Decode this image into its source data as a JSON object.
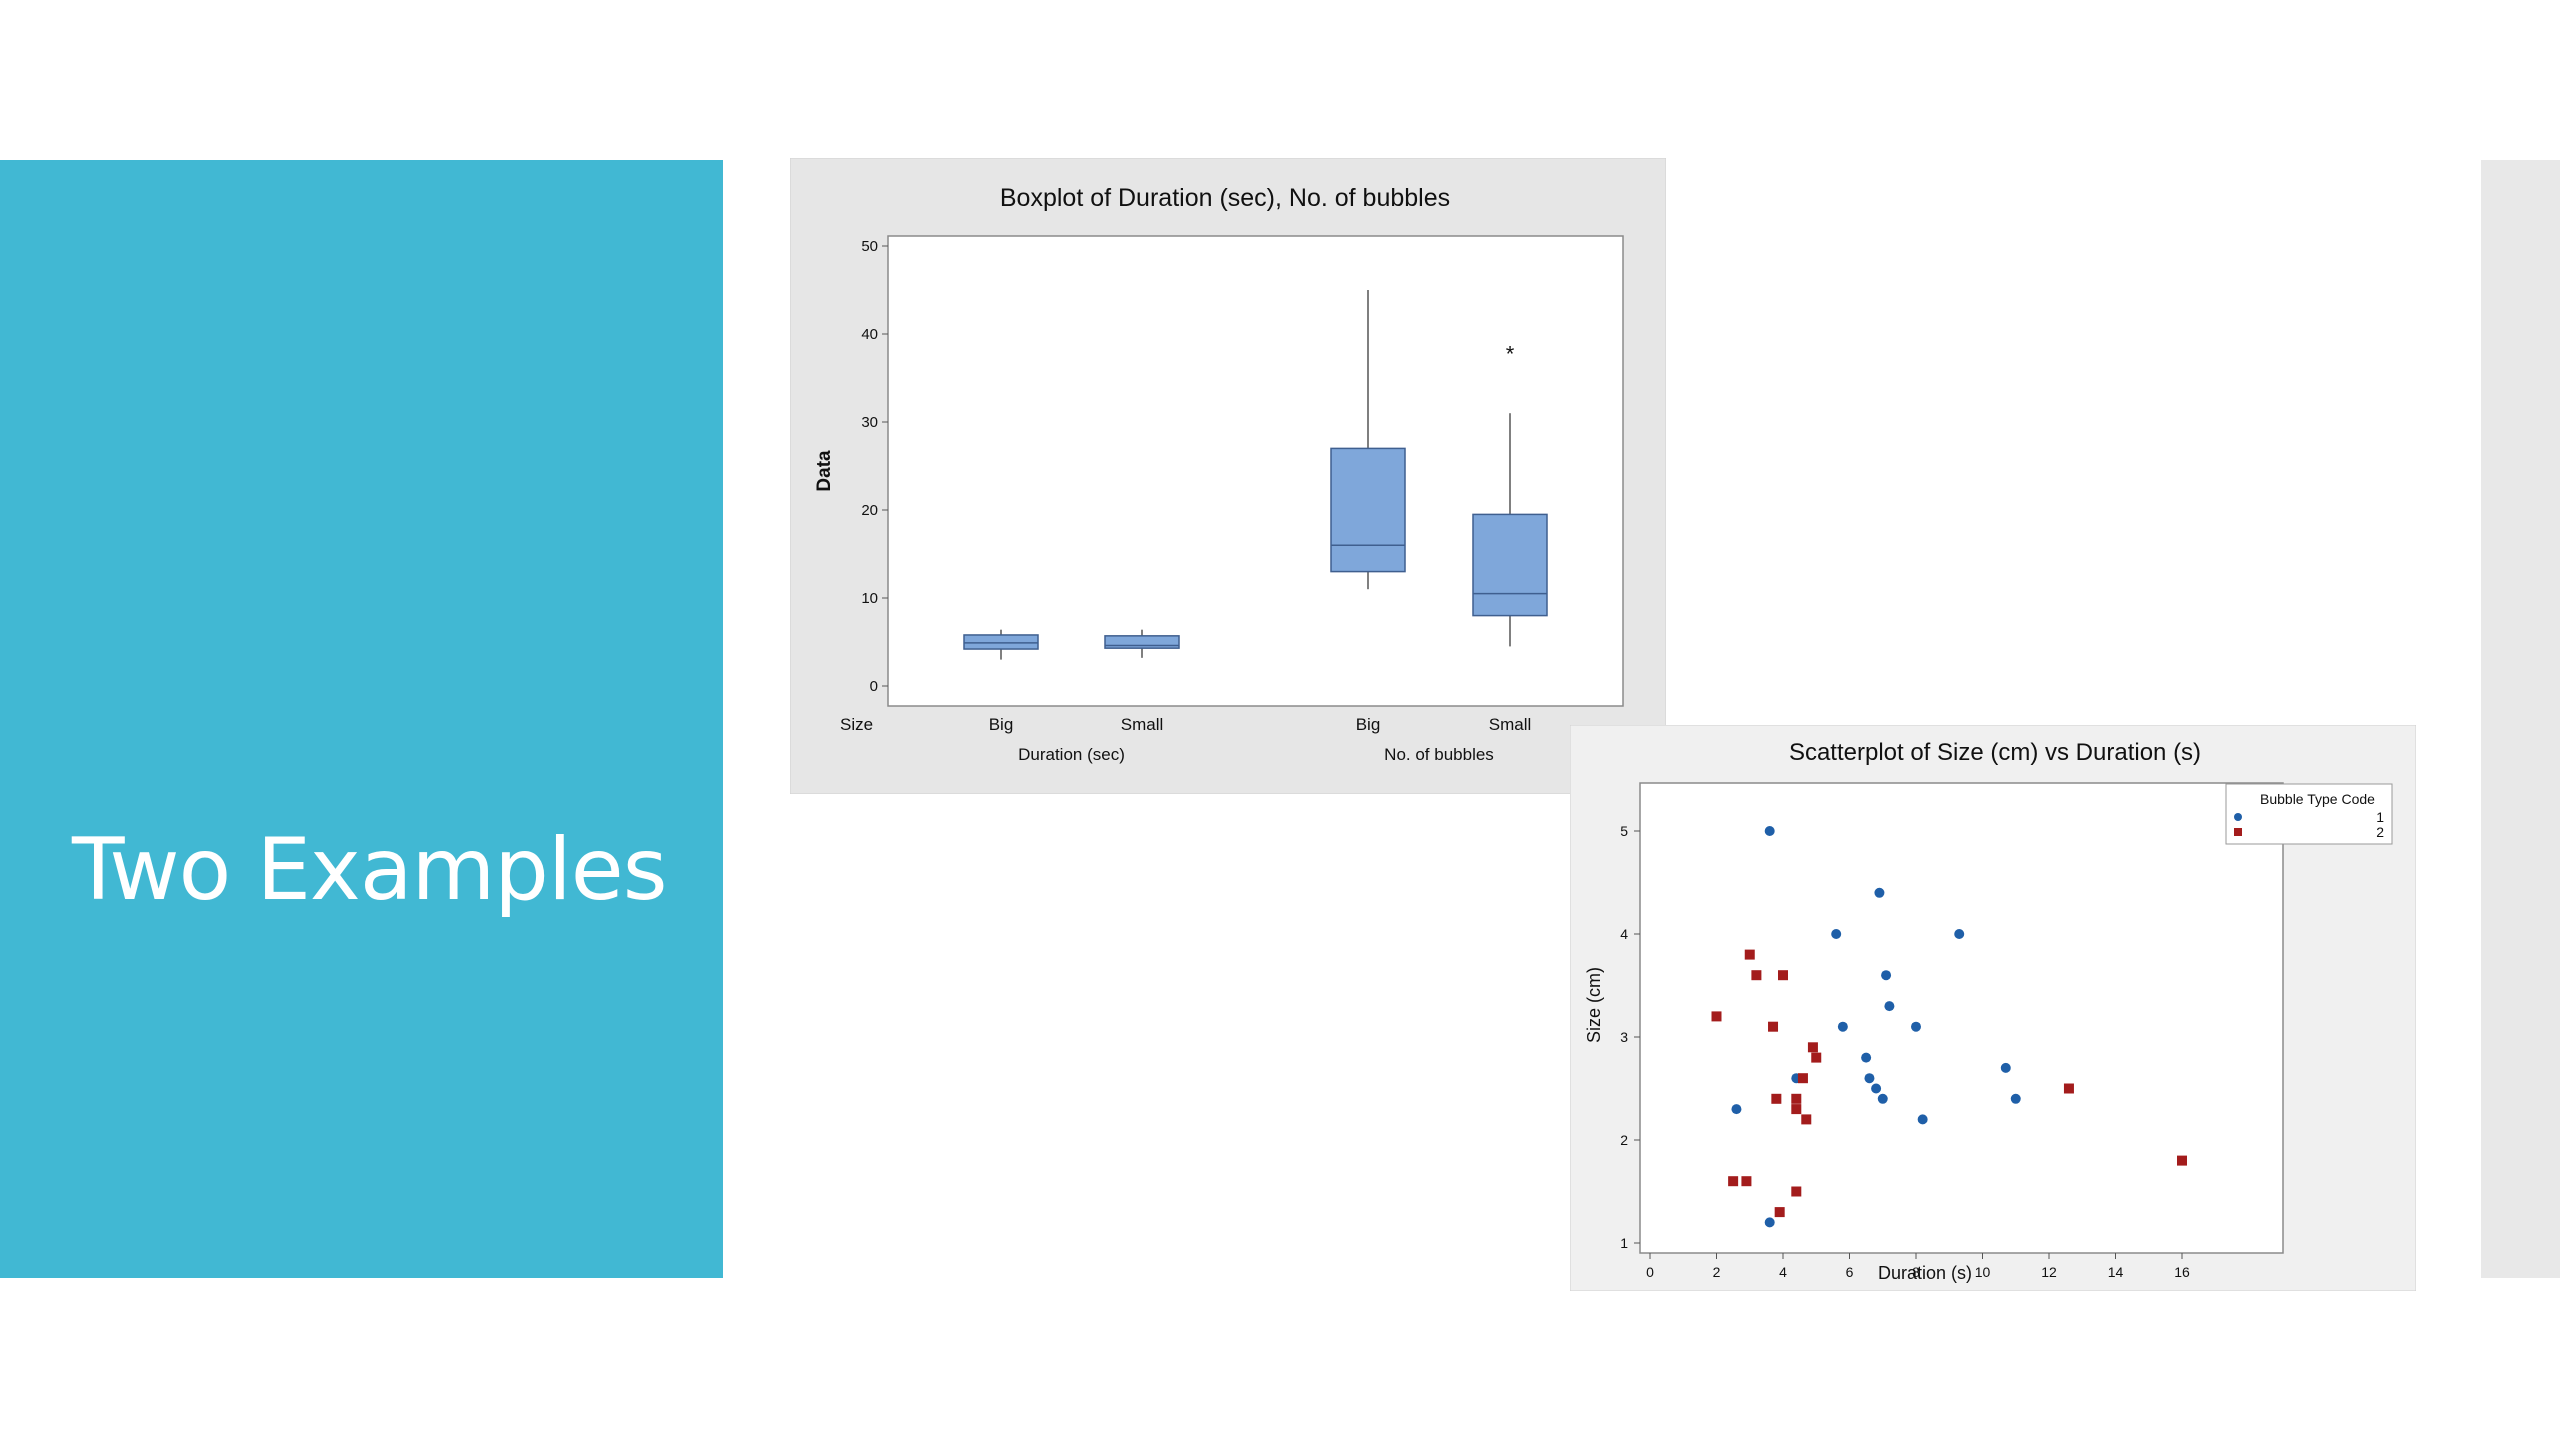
{
  "slide": {
    "title": "Two Examples",
    "colors": {
      "left_band": "#41b8d3",
      "right_band": "#e8e8e8",
      "background": "#ffffff"
    }
  },
  "chart_data": [
    {
      "type": "boxplot",
      "title": "Boxplot of Duration (sec), No. of bubbles",
      "ylabel": "Data",
      "ylim": [
        0,
        50
      ],
      "yticks": [
        0,
        10,
        20,
        30,
        40,
        50
      ],
      "group_row_label": "Size",
      "groups": [
        {
          "name": "Duration (sec)",
          "categories": [
            "Big",
            "Small"
          ]
        },
        {
          "name": "No. of bubbles",
          "categories": [
            "Big",
            "Small"
          ]
        }
      ],
      "boxes": [
        {
          "group": "Duration (sec)",
          "category": "Big",
          "min": 3.0,
          "q1": 4.2,
          "median": 4.9,
          "q3": 5.8,
          "max": 6.4,
          "outliers": []
        },
        {
          "group": "Duration (sec)",
          "category": "Small",
          "min": 3.2,
          "q1": 4.3,
          "median": 4.6,
          "q3": 5.7,
          "max": 6.4,
          "outliers": []
        },
        {
          "group": "No. of bubbles",
          "category": "Big",
          "min": 11,
          "q1": 13,
          "median": 16,
          "q3": 27,
          "max": 45,
          "outliers": []
        },
        {
          "group": "No. of bubbles",
          "category": "Small",
          "min": 4.5,
          "q1": 8,
          "median": 10.5,
          "q3": 19.5,
          "max": 31,
          "outliers": [
            38
          ]
        }
      ],
      "box_color": "#7fa7da",
      "grid": false
    },
    {
      "type": "scatter",
      "title": "Scatterplot of Size (cm) vs Duration (s)",
      "xlabel": "Duration (s)",
      "ylabel": "Size (cm)",
      "xlim": [
        0,
        16
      ],
      "ylim": [
        1,
        5
      ],
      "xticks": [
        0,
        2,
        4,
        6,
        8,
        10,
        12,
        14,
        16
      ],
      "yticks": [
        1,
        2,
        3,
        4,
        5
      ],
      "legend": {
        "title": "Bubble Type Code",
        "placement": "top-right"
      },
      "series": [
        {
          "name": "1",
          "marker": "circle",
          "color": "#1f5fa8",
          "points": [
            [
              3.6,
              5.0
            ],
            [
              6.9,
              4.4
            ],
            [
              5.6,
              4.0
            ],
            [
              9.3,
              4.0
            ],
            [
              7.1,
              3.6
            ],
            [
              7.2,
              3.3
            ],
            [
              5.8,
              3.1
            ],
            [
              8.0,
              3.1
            ],
            [
              6.5,
              2.8
            ],
            [
              10.7,
              2.7
            ],
            [
              4.4,
              2.6
            ],
            [
              6.6,
              2.6
            ],
            [
              6.8,
              2.5
            ],
            [
              7.0,
              2.4
            ],
            [
              11.0,
              2.4
            ],
            [
              2.6,
              2.3
            ],
            [
              8.2,
              2.2
            ],
            [
              3.6,
              1.2
            ]
          ]
        },
        {
          "name": "2",
          "marker": "square",
          "color": "#a31c1c",
          "points": [
            [
              3.0,
              3.8
            ],
            [
              3.2,
              3.6
            ],
            [
              4.0,
              3.6
            ],
            [
              2.0,
              3.2
            ],
            [
              3.7,
              3.1
            ],
            [
              4.9,
              2.9
            ],
            [
              5.0,
              2.8
            ],
            [
              4.6,
              2.6
            ],
            [
              3.8,
              2.4
            ],
            [
              4.4,
              2.4
            ],
            [
              4.4,
              2.3
            ],
            [
              4.7,
              2.2
            ],
            [
              12.6,
              2.5
            ],
            [
              16.0,
              1.8
            ],
            [
              2.5,
              1.6
            ],
            [
              2.9,
              1.6
            ],
            [
              4.4,
              1.5
            ],
            [
              3.9,
              1.3
            ]
          ]
        }
      ],
      "grid": false
    }
  ]
}
